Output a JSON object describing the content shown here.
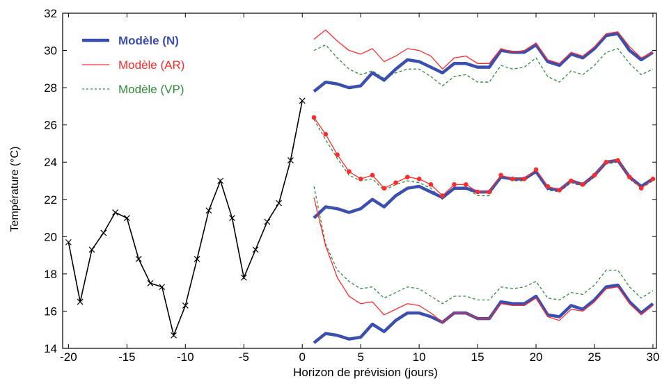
{
  "chart_data": {
    "type": "line",
    "title": "",
    "xlabel": "Horizon de prévision (jours)",
    "ylabel": "Température (°C)",
    "xlim": [
      -20.5,
      30.3
    ],
    "ylim": [
      14,
      32
    ],
    "xticks": [
      -20,
      -15,
      -10,
      -5,
      0,
      5,
      10,
      15,
      20,
      25,
      30
    ],
    "xtick_labels": [
      "-20",
      "-15",
      "-10",
      "-5",
      "0",
      "5",
      "10",
      "15",
      "20",
      "25",
      "30"
    ],
    "yticks": [
      14,
      16,
      18,
      20,
      22,
      24,
      26,
      28,
      30,
      32
    ],
    "ytick_labels": [
      "14",
      "16",
      "18",
      "20",
      "22",
      "24",
      "26",
      "28",
      "30",
      "32"
    ],
    "grid": false,
    "legend_position": "top-left",
    "legend": [
      {
        "label": "Modèle (N)",
        "color": "#3a4fb0",
        "style": "thick-solid"
      },
      {
        "label": "Modèle (AR)",
        "color": "#ff2a2a",
        "style": "thin-solid"
      },
      {
        "label": "Modèle (VP)",
        "color": "#2e8b3a",
        "style": "dotted"
      }
    ],
    "observed": {
      "color": "#000000",
      "marker": "x",
      "x": [
        -20,
        -19,
        -18,
        -17,
        -16,
        -15,
        -14,
        -13,
        -12,
        -11,
        -10,
        -9,
        -8,
        -7,
        -6,
        -5,
        -4,
        -3,
        -2,
        -1,
        0
      ],
      "y": [
        19.7,
        16.5,
        19.3,
        20.2,
        21.3,
        21.0,
        18.8,
        17.5,
        17.3,
        14.7,
        16.3,
        18.8,
        21.4,
        23.0,
        21.0,
        17.8,
        19.3,
        20.8,
        21.8,
        24.1,
        27.3
      ]
    },
    "forecast_x": [
      1,
      2,
      3,
      4,
      5,
      6,
      7,
      8,
      9,
      10,
      11,
      12,
      13,
      14,
      15,
      16,
      17,
      18,
      19,
      20,
      21,
      22,
      23,
      24,
      25,
      26,
      27,
      28,
      29,
      30
    ],
    "series": [
      {
        "name": "Modèle (N)",
        "group": "upper",
        "color": "#3a4fb0",
        "values": [
          27.8,
          28.3,
          28.2,
          28.0,
          28.1,
          28.8,
          28.4,
          29.0,
          29.5,
          29.4,
          29.1,
          28.8,
          29.3,
          29.3,
          29.1,
          29.1,
          30.0,
          29.9,
          29.9,
          30.3,
          29.4,
          29.2,
          29.8,
          29.6,
          30.1,
          30.8,
          30.9,
          30.0,
          29.5,
          29.9
        ]
      },
      {
        "name": "Modèle (AR)",
        "group": "upper",
        "color": "#ff2a2a",
        "values": [
          30.6,
          31.1,
          30.5,
          30.0,
          29.8,
          30.1,
          29.4,
          29.7,
          30.1,
          30.0,
          29.7,
          29.0,
          29.6,
          29.7,
          29.3,
          29.3,
          30.1,
          29.9,
          30.0,
          30.4,
          29.5,
          29.3,
          29.9,
          29.7,
          30.2,
          30.9,
          31.0,
          30.2,
          29.6,
          29.9
        ]
      },
      {
        "name": "Modèle (VP)",
        "group": "upper",
        "color": "#2e8b3a",
        "values": [
          30.0,
          30.3,
          29.6,
          29.0,
          28.7,
          28.9,
          28.5,
          28.8,
          29.0,
          29.0,
          28.6,
          28.1,
          28.6,
          28.7,
          28.3,
          28.3,
          29.2,
          29.0,
          29.1,
          29.6,
          28.6,
          28.3,
          28.9,
          28.7,
          29.2,
          29.9,
          30.1,
          29.3,
          28.7,
          29.0
        ]
      },
      {
        "name": "Modèle (N)",
        "group": "middle",
        "color": "#3a4fb0",
        "values": [
          21.0,
          21.6,
          21.5,
          21.3,
          21.5,
          22.0,
          21.6,
          22.2,
          22.6,
          22.7,
          22.4,
          22.1,
          22.6,
          22.6,
          22.4,
          22.4,
          23.2,
          23.1,
          23.1,
          23.5,
          22.6,
          22.5,
          23.0,
          22.8,
          23.3,
          24.0,
          24.1,
          23.2,
          22.7,
          23.1
        ]
      },
      {
        "name": "Modèle (AR)",
        "group": "middle",
        "color": "#ff2a2a",
        "values": [
          26.4,
          25.5,
          24.4,
          23.5,
          23.1,
          23.3,
          22.6,
          22.9,
          23.2,
          23.1,
          22.8,
          22.2,
          22.8,
          22.8,
          22.4,
          22.4,
          23.3,
          23.1,
          23.1,
          23.6,
          22.7,
          22.5,
          23.0,
          22.8,
          23.3,
          24.0,
          24.1,
          23.2,
          22.6,
          23.1
        ]
      },
      {
        "name": "Modèle (VP)",
        "group": "middle",
        "color": "#2e8b3a",
        "values": [
          26.3,
          25.2,
          24.2,
          23.3,
          23.0,
          23.1,
          22.5,
          22.8,
          23.0,
          22.9,
          22.6,
          22.0,
          22.6,
          22.6,
          22.2,
          22.2,
          23.2,
          23.0,
          23.0,
          23.5,
          22.5,
          22.4,
          22.9,
          22.7,
          23.2,
          23.9,
          24.0,
          23.1,
          22.6,
          23.0
        ]
      },
      {
        "name": "Modèle (N)",
        "group": "lower",
        "color": "#3a4fb0",
        "values": [
          14.3,
          14.8,
          14.7,
          14.5,
          14.6,
          15.3,
          14.9,
          15.5,
          15.9,
          15.9,
          15.7,
          15.4,
          15.9,
          15.9,
          15.6,
          15.6,
          16.5,
          16.4,
          16.4,
          16.8,
          15.8,
          15.7,
          16.3,
          16.1,
          16.6,
          17.3,
          17.4,
          16.5,
          15.9,
          16.4
        ]
      },
      {
        "name": "Modèle (AR)",
        "group": "lower",
        "color": "#ff2a2a",
        "values": [
          22.1,
          19.5,
          17.8,
          16.8,
          16.4,
          16.5,
          15.8,
          16.1,
          16.4,
          16.3,
          15.9,
          15.4,
          15.9,
          15.9,
          15.6,
          15.6,
          16.4,
          16.3,
          16.3,
          16.7,
          15.7,
          15.5,
          16.1,
          16.0,
          16.5,
          17.2,
          17.3,
          16.4,
          15.8,
          16.3
        ]
      },
      {
        "name": "Modèle (VP)",
        "group": "lower",
        "color": "#2e8b3a",
        "values": [
          22.7,
          19.6,
          18.2,
          17.6,
          17.2,
          17.3,
          16.7,
          17.0,
          17.3,
          17.2,
          16.8,
          16.4,
          16.8,
          16.8,
          16.6,
          16.6,
          17.3,
          17.2,
          17.3,
          17.6,
          16.7,
          16.6,
          17.0,
          16.9,
          17.4,
          18.2,
          18.2,
          17.3,
          16.7,
          17.1
        ]
      }
    ]
  }
}
